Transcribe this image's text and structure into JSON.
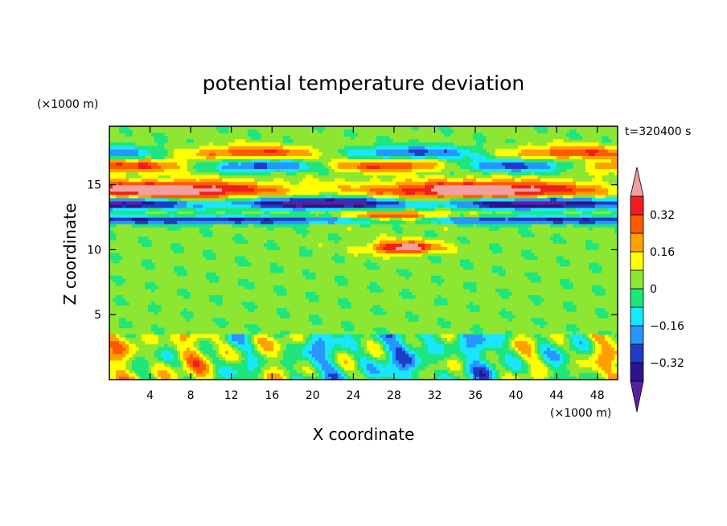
{
  "chart_data": {
    "type": "heatmap",
    "title": "potential temperature deviation",
    "xlabel": "X coordinate",
    "ylabel": "Z coordinate",
    "x_unit": "(×1000 m)",
    "y_unit": "(×1000 m)",
    "time_label": "t=320400 s",
    "xlim": [
      0,
      50
    ],
    "ylim": [
      0,
      19.5
    ],
    "x_ticks": [
      4,
      8,
      12,
      16,
      20,
      24,
      28,
      32,
      36,
      40,
      44,
      48
    ],
    "x_tick_labels": [
      "4",
      "8",
      "12",
      "16",
      "20",
      "24",
      "28",
      "32",
      "36",
      "40",
      "44",
      "48"
    ],
    "y_ticks": [
      5,
      10,
      15
    ],
    "y_tick_labels": [
      "5",
      "10",
      "15"
    ],
    "colorbar": {
      "levels": [
        -0.4,
        -0.32,
        -0.24,
        -0.16,
        -0.08,
        0,
        0.08,
        0.16,
        0.24,
        0.32,
        0.4
      ],
      "tick_values": [
        0.32,
        0.16,
        0,
        -0.16,
        -0.32
      ],
      "tick_labels": [
        "0.32",
        "0.16",
        "0",
        "−0.16",
        "−0.32"
      ],
      "colors": [
        "#5a1ea0",
        "#2d148c",
        "#1e3cc8",
        "#2896ff",
        "#19e6ff",
        "#1ee67d",
        "#8ce632",
        "#ffff00",
        "#ffa000",
        "#ff5a00",
        "#f01e1e",
        "#f0a0a0"
      ]
    },
    "fields": {
      "lower_layer": {
        "z_range": [
          0,
          3.8
        ],
        "min": -0.4,
        "max": 0.3
      },
      "middle_layer": {
        "z_range": [
          3.8,
          11
        ],
        "min": -0.1,
        "max": 0.4
      },
      "upper_layer": {
        "z_range": [
          11,
          18.5
        ],
        "min": -0.4,
        "max": 0.4
      }
    }
  }
}
